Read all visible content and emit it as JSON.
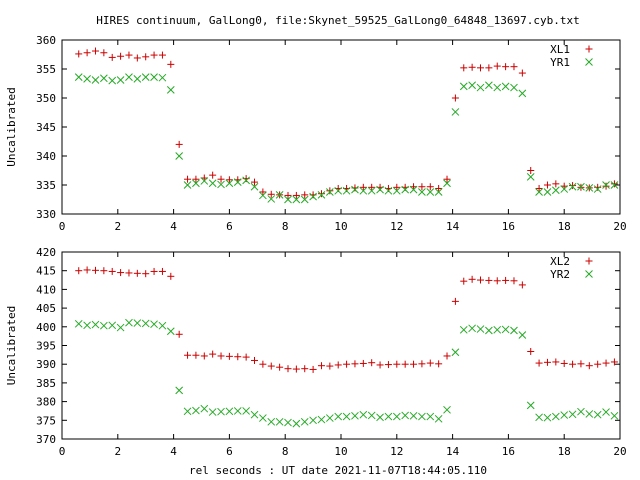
{
  "title": "HIRES continuum, GalLong0, file:Skynet_59525_GalLong0_64848_13697.cyb.txt",
  "xlabel": "rel seconds : UT date 2021-11-07T18:44:05.110",
  "colors": {
    "red": "#cc0000",
    "green": "#22aa22"
  },
  "chart_data": [
    {
      "type": "scatter",
      "ylabel": "Uncalibrated",
      "xlim": [
        0,
        20
      ],
      "ylim": [
        330,
        360
      ],
      "xticks": [
        0,
        2,
        4,
        6,
        8,
        10,
        12,
        14,
        16,
        18,
        20
      ],
      "yticks": [
        330,
        335,
        340,
        345,
        350,
        355,
        360
      ],
      "legend_position": "top-right",
      "series": [
        {
          "name": "XL1",
          "marker": "plus",
          "color": "#cc0000",
          "x": [
            0.6,
            0.9,
            1.2,
            1.5,
            1.8,
            2.1,
            2.4,
            2.7,
            3.0,
            3.3,
            3.6,
            3.9,
            4.2,
            4.5,
            4.8,
            5.1,
            5.4,
            5.7,
            6.0,
            6.3,
            6.6,
            6.9,
            7.2,
            7.5,
            7.8,
            8.1,
            8.4,
            8.7,
            9.0,
            9.3,
            9.6,
            9.9,
            10.2,
            10.5,
            10.8,
            11.1,
            11.4,
            11.7,
            12.0,
            12.3,
            12.6,
            12.9,
            13.2,
            13.5,
            13.8,
            14.1,
            14.4,
            14.7,
            15.0,
            15.3,
            15.6,
            15.9,
            16.2,
            16.5,
            16.8,
            17.1,
            17.4,
            17.7,
            18.0,
            18.3,
            18.6,
            18.9,
            19.2,
            19.5,
            19.8
          ],
          "y": [
            357.6,
            357.8,
            358.1,
            357.8,
            357.0,
            357.2,
            357.4,
            356.9,
            357.1,
            357.4,
            357.4,
            355.8,
            342.0,
            336.0,
            336.0,
            336.2,
            336.7,
            336.0,
            335.9,
            335.9,
            336.1,
            335.5,
            333.8,
            333.4,
            333.3,
            333.2,
            333.2,
            333.3,
            333.3,
            333.5,
            334.0,
            334.4,
            334.4,
            334.5,
            334.6,
            334.6,
            334.6,
            334.4,
            334.6,
            334.6,
            334.7,
            334.7,
            334.7,
            334.4,
            336.0,
            350.0,
            355.2,
            355.3,
            355.2,
            355.2,
            355.5,
            355.4,
            355.4,
            354.3,
            337.5,
            334.4,
            335.0,
            335.2,
            334.8,
            334.9,
            334.6,
            334.5,
            334.6,
            334.8,
            335.2
          ]
        },
        {
          "name": "YR1",
          "marker": "cross",
          "color": "#22aa22",
          "x": [
            0.6,
            0.9,
            1.2,
            1.5,
            1.8,
            2.1,
            2.4,
            2.7,
            3.0,
            3.3,
            3.6,
            3.9,
            4.2,
            4.5,
            4.8,
            5.1,
            5.4,
            5.7,
            6.0,
            6.3,
            6.6,
            6.9,
            7.2,
            7.5,
            7.8,
            8.1,
            8.4,
            8.7,
            9.0,
            9.3,
            9.6,
            9.9,
            10.2,
            10.5,
            10.8,
            11.1,
            11.4,
            11.7,
            12.0,
            12.3,
            12.6,
            12.9,
            13.2,
            13.5,
            13.8,
            14.1,
            14.4,
            14.7,
            15.0,
            15.3,
            15.6,
            15.9,
            16.2,
            16.5,
            16.8,
            17.1,
            17.4,
            17.7,
            18.0,
            18.3,
            18.6,
            18.9,
            19.2,
            19.5,
            19.8
          ],
          "y": [
            353.6,
            353.3,
            353.1,
            353.4,
            353.0,
            353.1,
            353.6,
            353.3,
            353.6,
            353.6,
            353.5,
            351.4,
            340.0,
            335.0,
            335.3,
            335.7,
            335.3,
            335.1,
            335.3,
            335.5,
            335.8,
            334.7,
            333.2,
            332.6,
            333.3,
            332.5,
            332.5,
            332.5,
            333.0,
            333.3,
            333.8,
            334.0,
            334.0,
            334.2,
            334.0,
            334.0,
            334.2,
            334.0,
            334.0,
            334.2,
            334.2,
            333.8,
            333.8,
            333.8,
            335.3,
            347.6,
            352.0,
            352.2,
            351.8,
            352.2,
            351.8,
            352.0,
            351.8,
            350.8,
            336.4,
            333.8,
            333.8,
            334.1,
            334.3,
            334.7,
            334.7,
            334.5,
            334.3,
            335.0,
            335.0
          ]
        }
      ]
    },
    {
      "type": "scatter",
      "ylabel": "Uncalibrated",
      "xlim": [
        0,
        20
      ],
      "ylim": [
        370,
        420
      ],
      "xticks": [
        0,
        2,
        4,
        6,
        8,
        10,
        12,
        14,
        16,
        18,
        20
      ],
      "yticks": [
        370,
        375,
        380,
        385,
        390,
        395,
        400,
        405,
        410,
        415,
        420
      ],
      "legend_position": "top-right",
      "series": [
        {
          "name": "XL2",
          "marker": "plus",
          "color": "#cc0000",
          "x": [
            0.6,
            0.9,
            1.2,
            1.5,
            1.8,
            2.1,
            2.4,
            2.7,
            3.0,
            3.3,
            3.6,
            3.9,
            4.2,
            4.5,
            4.8,
            5.1,
            5.4,
            5.7,
            6.0,
            6.3,
            6.6,
            6.9,
            7.2,
            7.5,
            7.8,
            8.1,
            8.4,
            8.7,
            9.0,
            9.3,
            9.6,
            9.9,
            10.2,
            10.5,
            10.8,
            11.1,
            11.4,
            11.7,
            12.0,
            12.3,
            12.6,
            12.9,
            13.2,
            13.5,
            13.8,
            14.1,
            14.4,
            14.7,
            15.0,
            15.3,
            15.6,
            15.9,
            16.2,
            16.5,
            16.8,
            17.1,
            17.4,
            17.7,
            18.0,
            18.3,
            18.6,
            18.9,
            19.2,
            19.5,
            19.8
          ],
          "y": [
            415.0,
            415.2,
            415.1,
            415.0,
            414.8,
            414.5,
            414.4,
            414.3,
            414.2,
            414.8,
            414.8,
            413.5,
            398.0,
            392.4,
            392.4,
            392.2,
            392.7,
            392.2,
            392.1,
            392.0,
            391.9,
            391.0,
            390.0,
            389.5,
            389.2,
            388.8,
            388.7,
            388.8,
            388.6,
            389.6,
            389.5,
            389.8,
            390.0,
            390.1,
            390.2,
            390.4,
            389.8,
            389.9,
            390.0,
            390.0,
            390.0,
            390.1,
            390.3,
            390.1,
            392.2,
            406.8,
            412.2,
            412.7,
            412.5,
            412.4,
            412.3,
            412.4,
            412.3,
            411.2,
            393.4,
            390.3,
            390.5,
            390.6,
            390.2,
            390.0,
            390.1,
            389.6,
            390.0,
            390.3,
            390.6
          ]
        },
        {
          "name": "YR2",
          "marker": "cross",
          "color": "#22aa22",
          "x": [
            0.6,
            0.9,
            1.2,
            1.5,
            1.8,
            2.1,
            2.4,
            2.7,
            3.0,
            3.3,
            3.6,
            3.9,
            4.2,
            4.5,
            4.8,
            5.1,
            5.4,
            5.7,
            6.0,
            6.3,
            6.6,
            6.9,
            7.2,
            7.5,
            7.8,
            8.1,
            8.4,
            8.7,
            9.0,
            9.3,
            9.6,
            9.9,
            10.2,
            10.5,
            10.8,
            11.1,
            11.4,
            11.7,
            12.0,
            12.3,
            12.6,
            12.9,
            13.2,
            13.5,
            13.8,
            14.1,
            14.4,
            14.7,
            15.0,
            15.3,
            15.6,
            15.9,
            16.2,
            16.5,
            16.8,
            17.1,
            17.4,
            17.7,
            18.0,
            18.3,
            18.6,
            18.9,
            19.2,
            19.5,
            19.8
          ],
          "y": [
            400.8,
            400.4,
            400.6,
            400.3,
            400.4,
            399.8,
            401.1,
            401.0,
            400.9,
            400.7,
            400.3,
            398.8,
            383.0,
            377.4,
            377.6,
            378.1,
            377.2,
            377.3,
            377.4,
            377.5,
            377.5,
            376.5,
            375.6,
            374.6,
            374.6,
            374.4,
            374.1,
            374.6,
            375.0,
            375.2,
            375.6,
            376.0,
            376.0,
            376.2,
            376.5,
            376.3,
            375.8,
            376.0,
            376.0,
            376.3,
            376.2,
            376.0,
            376.0,
            375.4,
            377.8,
            393.2,
            399.2,
            399.6,
            399.4,
            399.0,
            399.2,
            399.3,
            399.0,
            397.8,
            379.0,
            375.8,
            375.7,
            376.0,
            376.4,
            376.6,
            377.3,
            376.7,
            376.5,
            377.2,
            376.2
          ]
        }
      ]
    }
  ]
}
